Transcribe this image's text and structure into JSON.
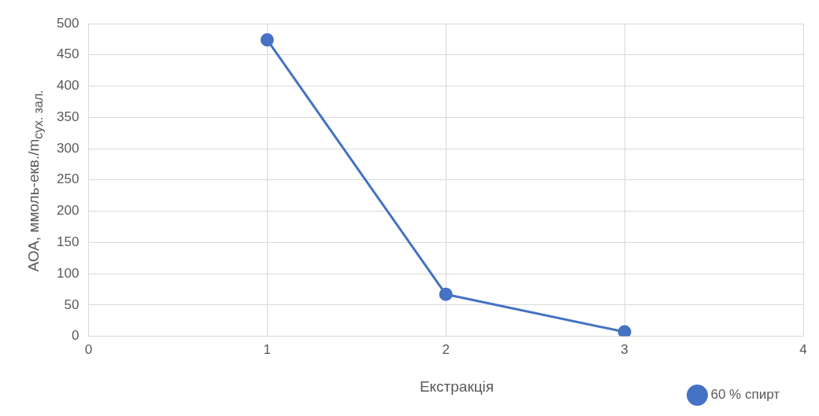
{
  "chart_data": {
    "type": "line",
    "xlabel": "Екстракція",
    "ylabel": "АОА, ммоль-екв./m$_{сух. зал.}$",
    "x": [
      1,
      2,
      3
    ],
    "series": [
      {
        "name": "60 % спирт",
        "color": "#4472c4",
        "values": [
          474,
          67,
          7
        ]
      }
    ],
    "xlim": [
      0,
      4
    ],
    "xticks": [
      0,
      1,
      2,
      3,
      4
    ],
    "ylim": [
      0,
      500
    ],
    "yticks": [
      0,
      50,
      100,
      150,
      200,
      250,
      300,
      350,
      400,
      450,
      500
    ],
    "grid": true,
    "legend": "bottom right",
    "marker": "circle",
    "line_style": "solid"
  }
}
